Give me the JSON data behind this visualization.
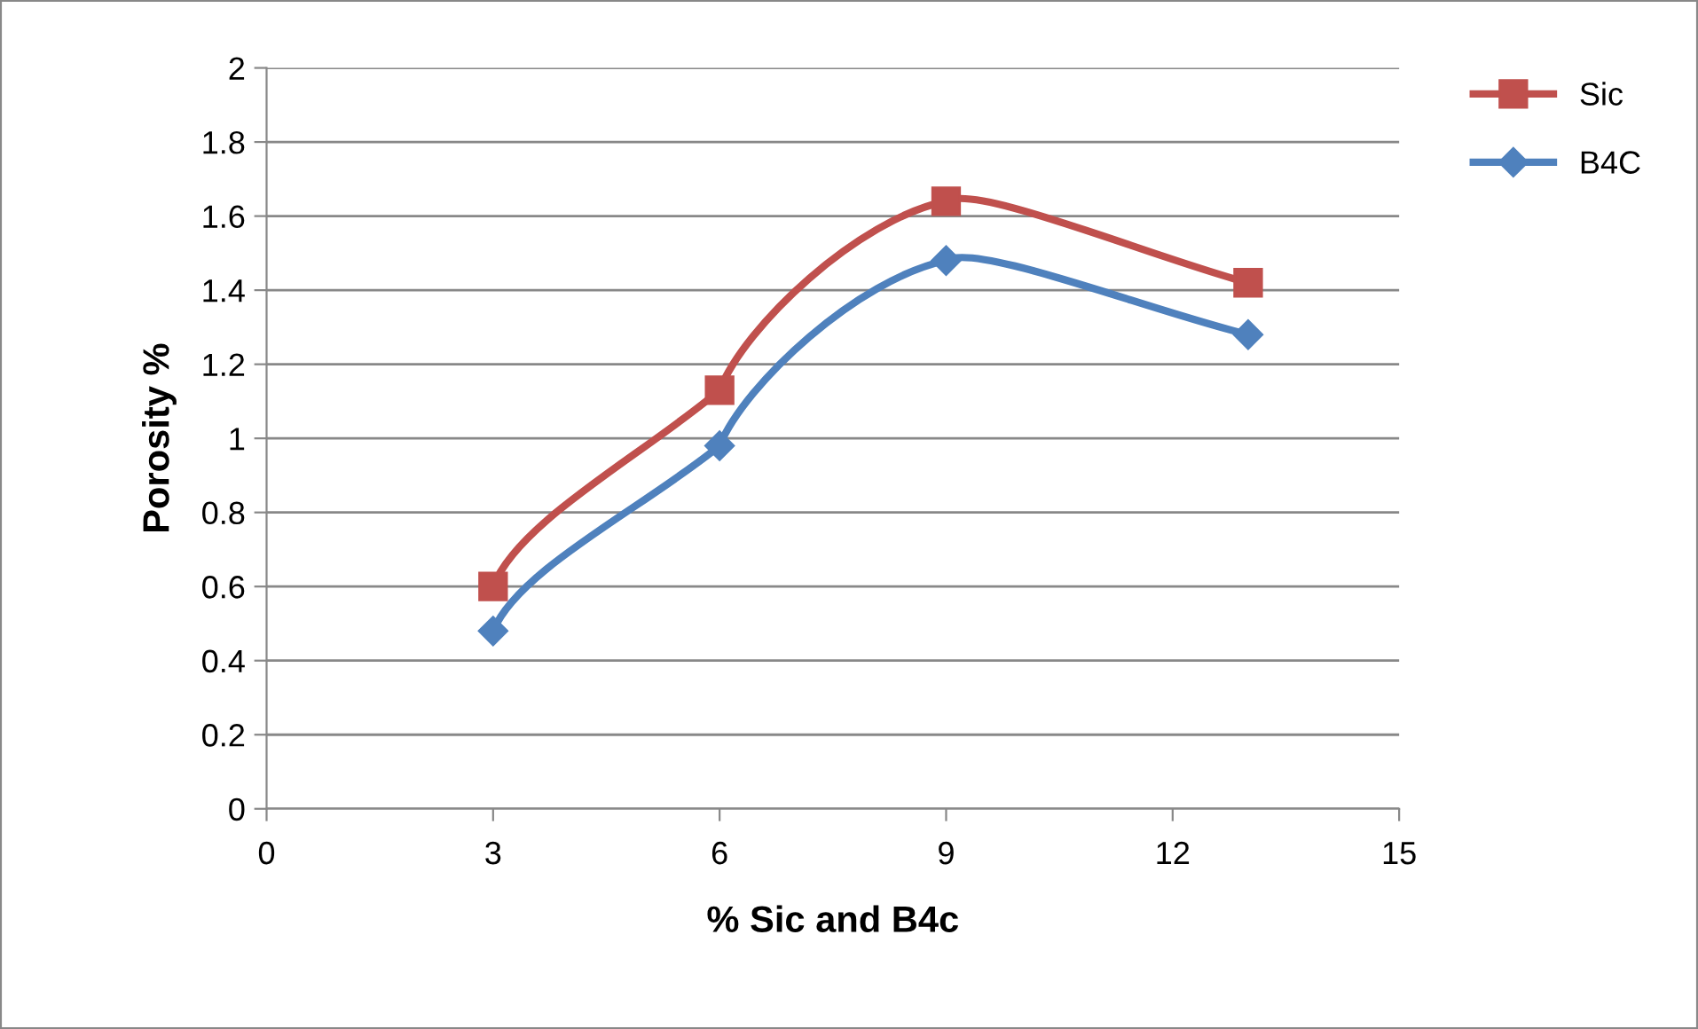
{
  "chart_data": {
    "type": "line",
    "xlabel": "% Sic and B4c",
    "ylabel": "Porosity %",
    "x": [
      3,
      6,
      9,
      13
    ],
    "series": [
      {
        "name": "Sic",
        "color": "#c0504d",
        "marker": "square",
        "values": [
          0.6,
          1.13,
          1.64,
          1.42
        ]
      },
      {
        "name": "B4C",
        "color": "#4f81bd",
        "marker": "diamond",
        "values": [
          0.48,
          0.98,
          1.48,
          1.28
        ]
      }
    ],
    "xlim": [
      0,
      15
    ],
    "xticks": [
      0,
      3,
      6,
      9,
      12,
      15
    ],
    "ylim": [
      0,
      2
    ],
    "yticks": [
      0,
      0.2,
      0.4,
      0.6,
      0.8,
      1,
      1.2,
      1.4,
      1.6,
      1.8,
      2
    ],
    "grid": "y",
    "legend": "top right",
    "line_style": "solid"
  }
}
